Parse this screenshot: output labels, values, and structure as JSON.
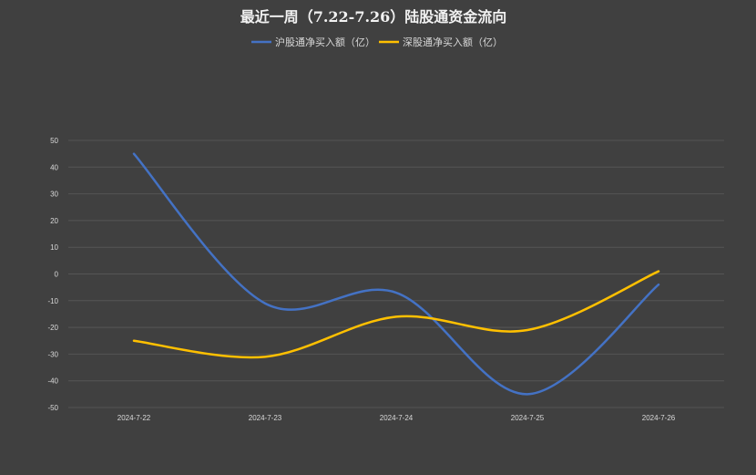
{
  "chart_data": {
    "type": "line",
    "title": "最近一周（7.22-7.26）陆股通资金流向",
    "xlabel": "",
    "ylabel": "",
    "categories": [
      "2024-7-22",
      "2024-7-23",
      "2024-7-24",
      "2024-7-25",
      "2024-7-26"
    ],
    "ylim": [
      -50,
      50
    ],
    "yticks": [
      50,
      40,
      30,
      20,
      10,
      0,
      -10,
      -20,
      -30,
      -40,
      -50
    ],
    "grid": true,
    "legend_position": "top",
    "smooth": true,
    "series": [
      {
        "name": "沪股通净买入额（亿）",
        "color": "#4472c4",
        "values": [
          45,
          -11,
          -7,
          -45,
          -4
        ]
      },
      {
        "name": "深股通净买入额（亿）",
        "color": "#ffc000",
        "values": [
          -25,
          -31,
          -16,
          -21,
          1
        ]
      }
    ]
  },
  "colors": {
    "background": "#404040",
    "gridline": "#555555",
    "text": "#d9d9d9"
  }
}
